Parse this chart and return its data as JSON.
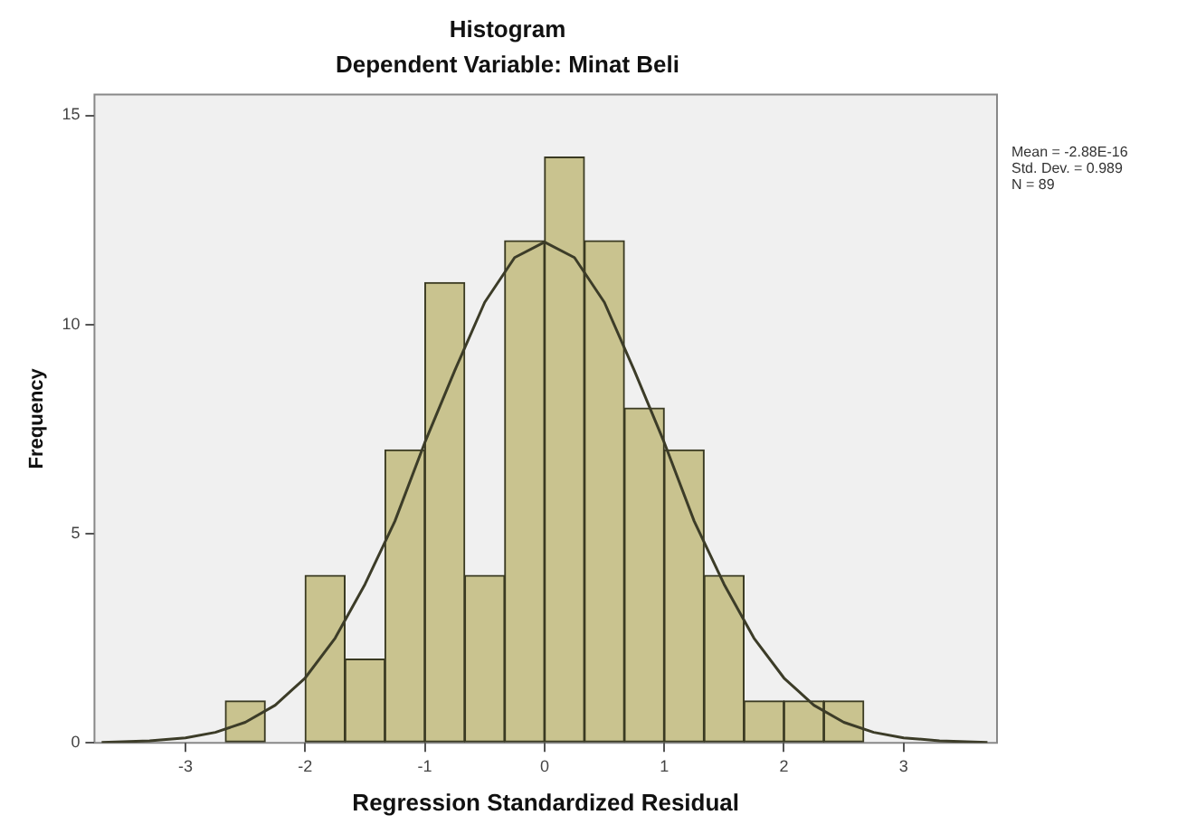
{
  "chart_data": {
    "type": "histogram",
    "title": "Histogram",
    "subtitle": "Dependent Variable: Minat Beli",
    "xlabel": "Regression Standardized Residual",
    "ylabel": "Frequency",
    "bins": [
      -2.667,
      -2.333,
      -2,
      -1.667,
      -1.333,
      -1,
      -0.667,
      -0.333,
      0,
      0.333,
      0.667,
      1,
      1.333,
      1.667,
      2,
      2.333,
      2.667
    ],
    "values": [
      1,
      0,
      4,
      2,
      7,
      11,
      4,
      12,
      14,
      12,
      8,
      7,
      4,
      1,
      1,
      1
    ],
    "color": "#c9c38f",
    "series": [
      {
        "type": "line",
        "color": "#3c3c28",
        "x": [
          -3.7,
          -3.3,
          -3,
          -2.75,
          -2.5,
          -2.25,
          -2,
          -1.75,
          -1.5,
          -1.25,
          -1,
          -0.75,
          -0.5,
          -0.25,
          0,
          0.25,
          0.5,
          0.75,
          1,
          1.25,
          1.5,
          1.75,
          2,
          2.25,
          2.5,
          2.75,
          3,
          3.3,
          3.7
        ],
        "values": [
          0.01,
          0.05,
          0.12,
          0.25,
          0.49,
          0.9,
          1.55,
          2.5,
          3.79,
          5.3,
          7.18,
          8.9,
          10.53,
          11.6,
          11.97,
          11.6,
          10.53,
          8.9,
          7.18,
          5.3,
          3.79,
          2.5,
          1.55,
          0.9,
          0.49,
          0.25,
          0.12,
          0.05,
          0.01
        ]
      }
    ],
    "xlim": [
      -3.76,
      3.78
    ],
    "xticks": [
      -3,
      -2,
      -1,
      0,
      1,
      2,
      3
    ],
    "ylim": [
      0,
      15.5
    ],
    "yticks": [
      0,
      5,
      10,
      15
    ],
    "grid": false,
    "annotations": [
      "Mean = -2.88E-16",
      "Std. Dev. = 0.989",
      "N = 89"
    ]
  }
}
